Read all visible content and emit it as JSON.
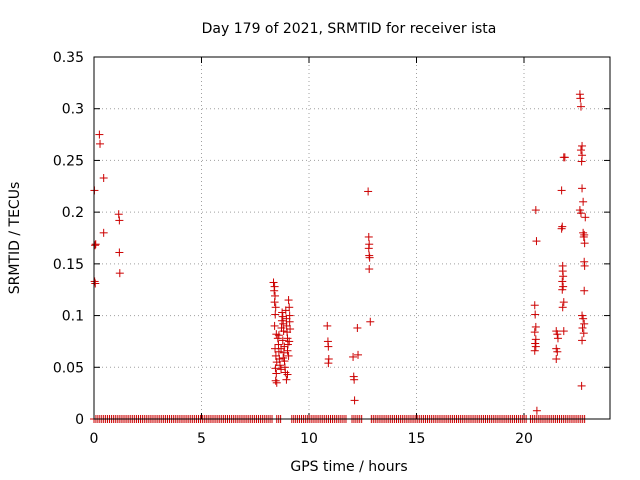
{
  "chart_data": {
    "type": "scatter",
    "title": "Day 179 of 2021, SRMTID for receiver ista",
    "xlabel": "GPS time / hours",
    "ylabel": "SRMTID / TECUs",
    "xlim": [
      0,
      24
    ],
    "ylim": [
      0,
      0.35
    ],
    "xticks": [
      0,
      5,
      10,
      15,
      20
    ],
    "yticks": [
      0,
      0.05,
      0.1,
      0.15,
      0.2,
      0.25,
      0.3,
      0.35
    ],
    "xtick_labels": [
      "0",
      "5",
      "10",
      "15",
      "20"
    ],
    "ytick_labels": [
      "0",
      "0.05",
      "0.1",
      "0.15",
      "0.2",
      "0.25",
      "0.3",
      "0.35"
    ],
    "grid": true,
    "legend": "none",
    "marker": "plus",
    "color": "#cc0000",
    "zero_segments": [
      [
        0,
        8.3
      ],
      [
        8.5,
        8.7
      ],
      [
        9.2,
        11.8
      ],
      [
        12.0,
        12.5
      ],
      [
        12.9,
        20.1
      ],
      [
        20.3,
        22.9
      ]
    ],
    "points": [
      [
        0.02,
        0.221
      ],
      [
        0.05,
        0.168
      ],
      [
        0.08,
        0.169
      ],
      [
        0.03,
        0.133
      ],
      [
        0.06,
        0.131
      ],
      [
        0.25,
        0.275
      ],
      [
        0.28,
        0.266
      ],
      [
        0.45,
        0.233
      ],
      [
        0.45,
        0.18
      ],
      [
        1.15,
        0.198
      ],
      [
        1.18,
        0.192
      ],
      [
        1.18,
        0.161
      ],
      [
        1.2,
        0.141
      ],
      [
        8.35,
        0.132
      ],
      [
        8.4,
        0.128
      ],
      [
        8.38,
        0.124
      ],
      [
        8.42,
        0.119
      ],
      [
        8.4,
        0.113
      ],
      [
        8.45,
        0.108
      ],
      [
        8.43,
        0.101
      ],
      [
        8.4,
        0.09
      ],
      [
        8.48,
        0.082
      ],
      [
        8.42,
        0.068
      ],
      [
        8.46,
        0.061
      ],
      [
        8.5,
        0.055
      ],
      [
        8.44,
        0.049
      ],
      [
        8.48,
        0.044
      ],
      [
        8.45,
        0.037
      ],
      [
        8.5,
        0.035
      ],
      [
        8.55,
        0.078
      ],
      [
        8.58,
        0.072
      ],
      [
        8.6,
        0.065
      ],
      [
        8.62,
        0.058
      ],
      [
        8.65,
        0.052
      ],
      [
        8.7,
        0.048
      ],
      [
        8.72,
        0.088
      ],
      [
        8.74,
        0.095
      ],
      [
        8.75,
        0.103
      ],
      [
        8.78,
        0.099
      ],
      [
        8.8,
        0.092
      ],
      [
        8.82,
        0.085
      ],
      [
        8.78,
        0.076
      ],
      [
        8.85,
        0.07
      ],
      [
        8.83,
        0.064
      ],
      [
        8.8,
        0.059
      ],
      [
        8.86,
        0.056
      ],
      [
        8.88,
        0.05
      ],
      [
        8.9,
        0.045
      ],
      [
        8.92,
        0.105
      ],
      [
        8.95,
        0.097
      ],
      [
        8.96,
        0.09
      ],
      [
        8.98,
        0.084
      ],
      [
        9.0,
        0.078
      ],
      [
        9.02,
        0.072
      ],
      [
        9.0,
        0.066
      ],
      [
        9.05,
        0.061
      ],
      [
        9.05,
        0.115
      ],
      [
        9.08,
        0.108
      ],
      [
        9.1,
        0.1
      ],
      [
        9.1,
        0.094
      ],
      [
        9.12,
        0.087
      ],
      [
        9.08,
        0.075
      ],
      [
        8.95,
        0.038
      ],
      [
        9.0,
        0.043
      ],
      [
        8.6,
        0.081
      ],
      [
        8.7,
        0.068
      ],
      [
        10.85,
        0.09
      ],
      [
        10.88,
        0.075
      ],
      [
        10.9,
        0.07
      ],
      [
        10.92,
        0.058
      ],
      [
        10.9,
        0.054
      ],
      [
        12.05,
        0.06
      ],
      [
        12.08,
        0.041
      ],
      [
        12.1,
        0.038
      ],
      [
        12.12,
        0.018
      ],
      [
        12.25,
        0.088
      ],
      [
        12.28,
        0.062
      ],
      [
        12.75,
        0.22
      ],
      [
        12.78,
        0.176
      ],
      [
        12.8,
        0.169
      ],
      [
        12.78,
        0.165
      ],
      [
        12.8,
        0.158
      ],
      [
        12.82,
        0.156
      ],
      [
        12.8,
        0.145
      ],
      [
        12.85,
        0.094
      ],
      [
        20.55,
        0.202
      ],
      [
        20.58,
        0.172
      ],
      [
        20.5,
        0.11
      ],
      [
        20.52,
        0.101
      ],
      [
        20.55,
        0.089
      ],
      [
        20.5,
        0.084
      ],
      [
        20.55,
        0.077
      ],
      [
        20.52,
        0.073
      ],
      [
        20.55,
        0.07
      ],
      [
        20.5,
        0.066
      ],
      [
        20.6,
        0.008
      ],
      [
        21.5,
        0.085
      ],
      [
        21.55,
        0.082
      ],
      [
        21.58,
        0.078
      ],
      [
        21.5,
        0.068
      ],
      [
        21.55,
        0.065
      ],
      [
        21.5,
        0.058
      ],
      [
        21.75,
        0.221
      ],
      [
        21.78,
        0.186
      ],
      [
        21.75,
        0.184
      ],
      [
        21.8,
        0.148
      ],
      [
        21.8,
        0.143
      ],
      [
        21.82,
        0.138
      ],
      [
        21.78,
        0.133
      ],
      [
        21.82,
        0.128
      ],
      [
        21.78,
        0.125
      ],
      [
        21.85,
        0.113
      ],
      [
        21.8,
        0.108
      ],
      [
        21.85,
        0.085
      ],
      [
        21.85,
        0.253
      ],
      [
        21.9,
        0.253
      ],
      [
        22.6,
        0.314
      ],
      [
        22.62,
        0.31
      ],
      [
        22.65,
        0.302
      ],
      [
        22.7,
        0.264
      ],
      [
        22.65,
        0.26
      ],
      [
        22.7,
        0.255
      ],
      [
        22.68,
        0.249
      ],
      [
        22.7,
        0.223
      ],
      [
        22.75,
        0.21
      ],
      [
        22.6,
        0.202
      ],
      [
        22.65,
        0.199
      ],
      [
        22.85,
        0.195
      ],
      [
        22.75,
        0.18
      ],
      [
        22.8,
        0.178
      ],
      [
        22.78,
        0.176
      ],
      [
        22.82,
        0.17
      ],
      [
        22.8,
        0.152
      ],
      [
        22.82,
        0.148
      ],
      [
        22.8,
        0.124
      ],
      [
        22.7,
        0.1
      ],
      [
        22.75,
        0.097
      ],
      [
        22.8,
        0.092
      ],
      [
        22.72,
        0.088
      ],
      [
        22.78,
        0.083
      ],
      [
        22.7,
        0.076
      ],
      [
        22.68,
        0.032
      ]
    ]
  }
}
